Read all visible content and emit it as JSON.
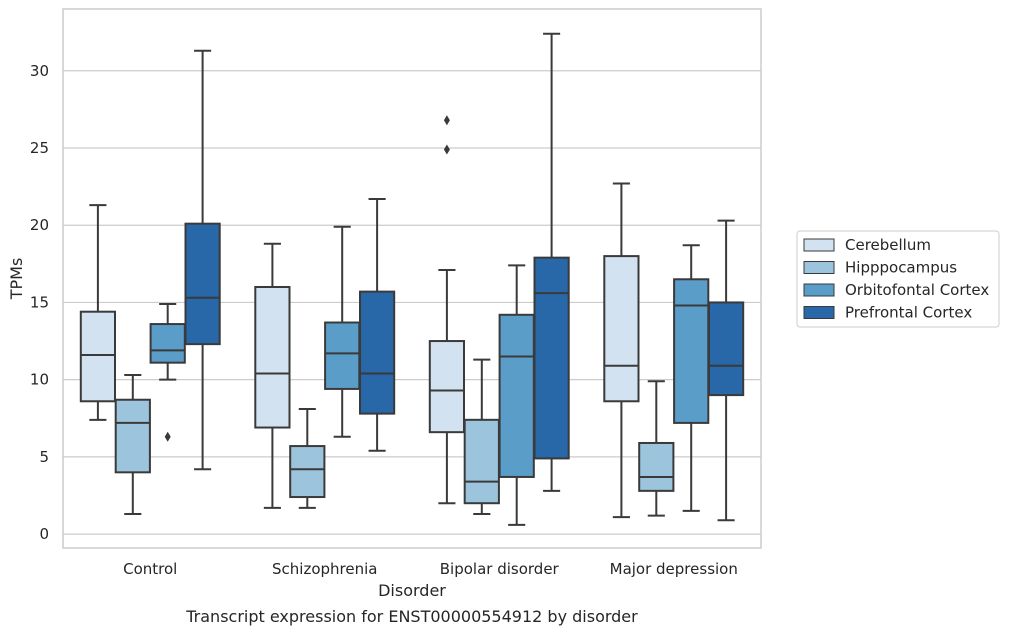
{
  "caption": "Transcript expression for ENST00000554912 by disorder",
  "chart_data": {
    "type": "box",
    "xlabel": "Disorder",
    "ylabel": "TPMs",
    "ylim": [
      -0.9,
      34.0
    ],
    "yticks": [
      0,
      5,
      10,
      15,
      20,
      25,
      30
    ],
    "grid": "horizontal",
    "legend_position": "right",
    "categories": [
      "Control",
      "Schizophrenia",
      "Bipolar disorder",
      "Major depression"
    ],
    "series": [
      {
        "name": "Cerebellum",
        "color": "#d2e2f1",
        "boxes": [
          {
            "whisker_low": 7.4,
            "q1": 8.6,
            "median": 11.6,
            "q3": 14.4,
            "whisker_high": 21.3,
            "outliers": []
          },
          {
            "whisker_low": 1.7,
            "q1": 6.9,
            "median": 10.4,
            "q3": 16.0,
            "whisker_high": 18.8,
            "outliers": []
          },
          {
            "whisker_low": 2.0,
            "q1": 6.6,
            "median": 9.3,
            "q3": 12.5,
            "whisker_high": 17.1,
            "outliers": [
              24.9,
              26.8
            ]
          },
          {
            "whisker_low": 1.1,
            "q1": 8.6,
            "median": 10.9,
            "q3": 18.0,
            "whisker_high": 22.7,
            "outliers": []
          }
        ]
      },
      {
        "name": "Hipppocampus",
        "color": "#9dc4dd",
        "boxes": [
          {
            "whisker_low": 1.3,
            "q1": 4.0,
            "median": 7.2,
            "q3": 8.7,
            "whisker_high": 10.3,
            "outliers": []
          },
          {
            "whisker_low": 1.7,
            "q1": 2.4,
            "median": 4.2,
            "q3": 5.7,
            "whisker_high": 8.1,
            "outliers": []
          },
          {
            "whisker_low": 1.3,
            "q1": 2.0,
            "median": 3.4,
            "q3": 7.4,
            "whisker_high": 11.3,
            "outliers": []
          },
          {
            "whisker_low": 1.2,
            "q1": 2.8,
            "median": 3.7,
            "q3": 5.9,
            "whisker_high": 9.9,
            "outliers": []
          }
        ]
      },
      {
        "name": "Orbitofontal Cortex",
        "color": "#5a9dc8",
        "boxes": [
          {
            "whisker_low": 10.0,
            "q1": 11.1,
            "median": 11.9,
            "q3": 13.6,
            "whisker_high": 14.9,
            "outliers": [
              6.3
            ]
          },
          {
            "whisker_low": 6.3,
            "q1": 9.4,
            "median": 11.7,
            "q3": 13.7,
            "whisker_high": 19.9,
            "outliers": []
          },
          {
            "whisker_low": 0.6,
            "q1": 3.7,
            "median": 11.5,
            "q3": 14.2,
            "whisker_high": 17.4,
            "outliers": []
          },
          {
            "whisker_low": 1.5,
            "q1": 7.2,
            "median": 14.8,
            "q3": 16.5,
            "whisker_high": 18.7,
            "outliers": []
          }
        ]
      },
      {
        "name": "Prefrontal Cortex",
        "color": "#2867a8",
        "boxes": [
          {
            "whisker_low": 4.2,
            "q1": 12.3,
            "median": 15.3,
            "q3": 20.1,
            "whisker_high": 31.3,
            "outliers": []
          },
          {
            "whisker_low": 5.4,
            "q1": 7.8,
            "median": 10.4,
            "q3": 15.7,
            "whisker_high": 21.7,
            "outliers": []
          },
          {
            "whisker_low": 2.8,
            "q1": 4.9,
            "median": 15.6,
            "q3": 17.9,
            "whisker_high": 32.4,
            "outliers": []
          },
          {
            "whisker_low": 0.9,
            "q1": 9.0,
            "median": 10.9,
            "q3": 15.0,
            "whisker_high": 20.3,
            "outliers": []
          }
        ]
      }
    ]
  }
}
